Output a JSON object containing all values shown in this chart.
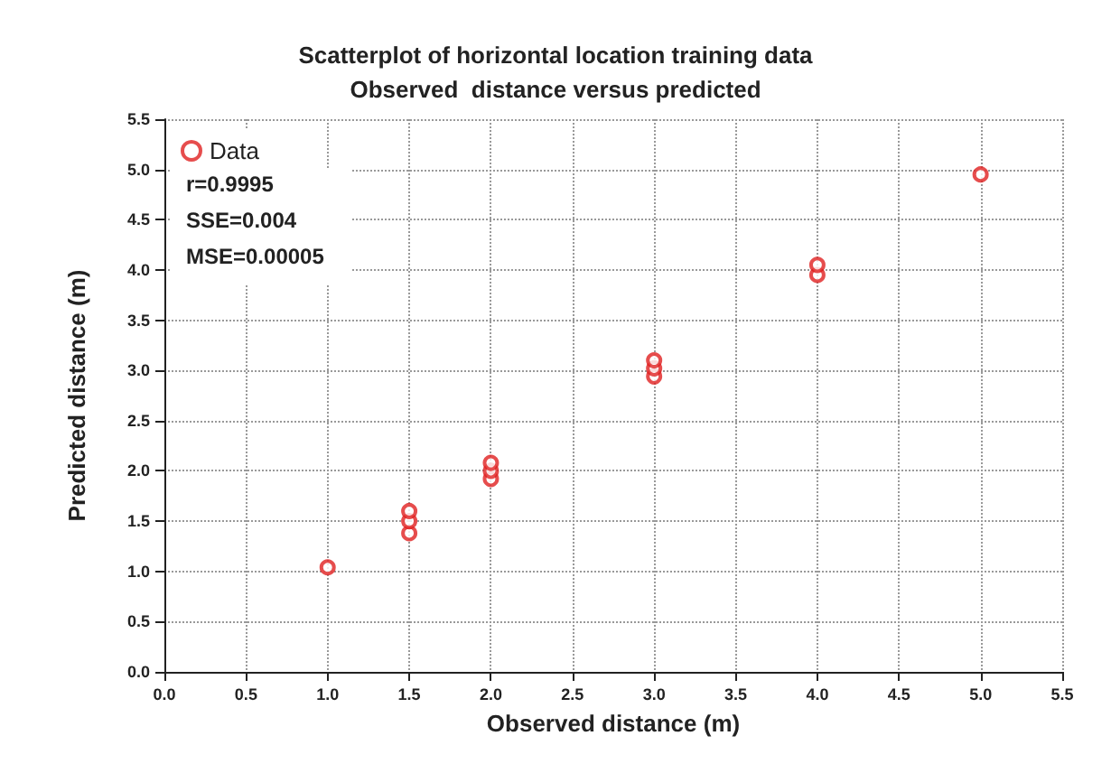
{
  "chart_data": {
    "type": "scatter",
    "title": "Scatterplot of horizontal location training data\nObserved  distance versus predicted",
    "xlabel": "Observed distance (m)",
    "ylabel": "Predicted distance (m)",
    "x": [
      1,
      1.5,
      1.5,
      1.5,
      2,
      2,
      2,
      3,
      3,
      3,
      4,
      4,
      5
    ],
    "series": [
      {
        "name": "Data",
        "color": "#e02020",
        "values": [
          1.04,
          1.38,
          1.5,
          1.6,
          1.92,
          2.0,
          2.08,
          2.94,
          3.02,
          3.1,
          3.95,
          4.05,
          4.95
        ]
      }
    ],
    "annotations": [
      "r=0.9995",
      "SSE=0.004",
      "MSE=0.00005"
    ],
    "xlim": [
      0,
      5.5
    ],
    "ylim": [
      0,
      5.5
    ],
    "xticks": [
      {
        "value": 0,
        "label": "0.0"
      },
      0.5,
      {
        "value": 1,
        "label": "1.0"
      },
      1.5,
      {
        "value": 2,
        "label": "2.0"
      },
      2.5,
      {
        "value": 3,
        "label": "3.0"
      },
      3.5,
      {
        "value": 4,
        "label": "4.0"
      },
      4.5,
      {
        "value": 5,
        "label": "5.0"
      },
      5.5
    ],
    "yticks": [
      {
        "value": 0,
        "label": "0.0"
      },
      0.5,
      {
        "value": 1,
        "label": "1.0"
      },
      1.5,
      {
        "value": 2,
        "label": "2.0"
      },
      2.5,
      {
        "value": 3,
        "label": "3.0"
      },
      3.5,
      {
        "value": 4,
        "label": "4.0"
      },
      4.5,
      {
        "value": 5,
        "label": "5.0"
      },
      5.5
    ],
    "grid": true,
    "legend": "top left",
    "marker": "circle"
  }
}
